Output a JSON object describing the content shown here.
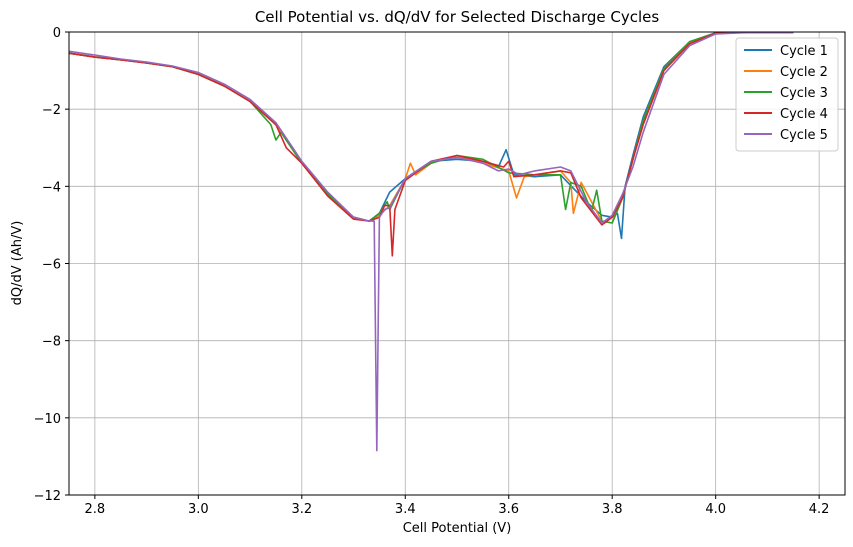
{
  "chart_data": {
    "type": "line",
    "title": "Cell Potential vs. dQ/dV for Selected Discharge Cycles",
    "xlabel": "Cell Potential (V)",
    "ylabel": "dQ/dV (Ah/V)",
    "xlim": [
      2.75,
      4.25
    ],
    "ylim": [
      -12,
      0
    ],
    "xticks": [
      2.8,
      3.0,
      3.2,
      3.4,
      3.6,
      3.8,
      4.0,
      4.2
    ],
    "xtick_labels": [
      "2.8",
      "3.0",
      "3.2",
      "3.4",
      "3.6",
      "3.8",
      "4.0",
      "4.2"
    ],
    "yticks": [
      0,
      -2,
      -4,
      -6,
      -8,
      -10,
      -12
    ],
    "ytick_labels": [
      "0",
      "−2",
      "−4",
      "−6",
      "−8",
      "−10",
      "−12"
    ],
    "grid": true,
    "legend_position": "top-right",
    "series": [
      {
        "name": "Cycle 1",
        "color": "#1f77b4",
        "x": [
          2.75,
          2.8,
          2.85,
          2.9,
          2.95,
          3.0,
          3.05,
          3.1,
          3.15,
          3.18,
          3.2,
          3.25,
          3.3,
          3.33,
          3.35,
          3.37,
          3.4,
          3.45,
          3.5,
          3.55,
          3.58,
          3.595,
          3.61,
          3.65,
          3.7,
          3.75,
          3.78,
          3.8,
          3.81,
          3.818,
          3.825,
          3.84,
          3.86,
          3.9,
          3.95,
          4.0,
          4.05,
          4.1,
          4.15
        ],
        "y": [
          -0.55,
          -0.65,
          -0.72,
          -0.8,
          -0.9,
          -1.1,
          -1.4,
          -1.8,
          -2.4,
          -3.0,
          -3.4,
          -4.2,
          -4.8,
          -4.9,
          -4.7,
          -4.15,
          -3.8,
          -3.35,
          -3.3,
          -3.35,
          -3.5,
          -3.05,
          -3.7,
          -3.75,
          -3.7,
          -4.4,
          -4.75,
          -4.8,
          -4.7,
          -5.35,
          -4.0,
          -3.2,
          -2.2,
          -0.9,
          -0.25,
          -0.02,
          -0.01,
          -0.01,
          -0.01
        ]
      },
      {
        "name": "Cycle 2",
        "color": "#ff7f0e",
        "x": [
          2.75,
          2.8,
          2.85,
          2.9,
          2.95,
          3.0,
          3.05,
          3.1,
          3.15,
          3.18,
          3.2,
          3.25,
          3.3,
          3.33,
          3.35,
          3.37,
          3.4,
          3.41,
          3.42,
          3.45,
          3.5,
          3.55,
          3.6,
          3.615,
          3.63,
          3.65,
          3.7,
          3.72,
          3.725,
          3.74,
          3.78,
          3.8,
          3.82,
          3.84,
          3.86,
          3.9,
          3.95,
          4.0,
          4.05,
          4.1,
          4.15
        ],
        "y": [
          -0.55,
          -0.65,
          -0.72,
          -0.8,
          -0.9,
          -1.1,
          -1.4,
          -1.8,
          -2.4,
          -3.0,
          -3.4,
          -4.2,
          -4.8,
          -4.9,
          -4.75,
          -4.5,
          -3.8,
          -3.4,
          -3.7,
          -3.4,
          -3.2,
          -3.4,
          -3.6,
          -4.3,
          -3.75,
          -3.7,
          -3.6,
          -3.9,
          -4.7,
          -3.9,
          -4.9,
          -4.95,
          -4.3,
          -3.3,
          -2.3,
          -0.95,
          -0.25,
          -0.03,
          -0.01,
          -0.01,
          -0.01
        ]
      },
      {
        "name": "Cycle 3",
        "color": "#2ca02c",
        "x": [
          2.75,
          2.8,
          2.85,
          2.9,
          2.95,
          3.0,
          3.05,
          3.1,
          3.14,
          3.15,
          3.16,
          3.18,
          3.2,
          3.25,
          3.3,
          3.33,
          3.35,
          3.365,
          3.37,
          3.4,
          3.45,
          3.5,
          3.55,
          3.6,
          3.65,
          3.7,
          3.71,
          3.72,
          3.74,
          3.76,
          3.77,
          3.78,
          3.8,
          3.82,
          3.84,
          3.86,
          3.9,
          3.95,
          4.0,
          4.05,
          4.1,
          4.15
        ],
        "y": [
          -0.55,
          -0.65,
          -0.72,
          -0.8,
          -0.9,
          -1.1,
          -1.4,
          -1.8,
          -2.4,
          -2.8,
          -2.6,
          -3.0,
          -3.4,
          -4.2,
          -4.8,
          -4.9,
          -4.7,
          -4.4,
          -4.6,
          -3.8,
          -3.4,
          -3.2,
          -3.3,
          -3.65,
          -3.7,
          -3.7,
          -4.6,
          -3.9,
          -4.0,
          -4.65,
          -4.1,
          -4.9,
          -4.95,
          -4.3,
          -3.3,
          -2.3,
          -0.95,
          -0.25,
          -0.03,
          -0.01,
          -0.01,
          -0.01
        ]
      },
      {
        "name": "Cycle 4",
        "color": "#d62728",
        "x": [
          2.75,
          2.8,
          2.85,
          2.9,
          2.95,
          3.0,
          3.05,
          3.1,
          3.15,
          3.17,
          3.2,
          3.25,
          3.3,
          3.33,
          3.35,
          3.36,
          3.37,
          3.375,
          3.38,
          3.4,
          3.45,
          3.5,
          3.55,
          3.59,
          3.6,
          3.61,
          3.65,
          3.7,
          3.72,
          3.74,
          3.78,
          3.8,
          3.82,
          3.84,
          3.86,
          3.9,
          3.95,
          4.0,
          4.05,
          4.1,
          4.15
        ],
        "y": [
          -0.55,
          -0.65,
          -0.72,
          -0.8,
          -0.9,
          -1.1,
          -1.4,
          -1.8,
          -2.4,
          -3.0,
          -3.4,
          -4.25,
          -4.85,
          -4.9,
          -4.8,
          -4.5,
          -4.5,
          -5.8,
          -4.6,
          -3.85,
          -3.35,
          -3.2,
          -3.35,
          -3.5,
          -3.35,
          -3.75,
          -3.7,
          -3.6,
          -3.65,
          -4.3,
          -5.0,
          -4.8,
          -4.3,
          -3.3,
          -2.4,
          -1.0,
          -0.3,
          -0.03,
          -0.01,
          -0.01,
          -0.01
        ]
      },
      {
        "name": "Cycle 5",
        "color": "#9467bd",
        "x": [
          2.75,
          2.8,
          2.85,
          2.9,
          2.95,
          3.0,
          3.05,
          3.1,
          3.15,
          3.18,
          3.2,
          3.25,
          3.3,
          3.33,
          3.34,
          3.345,
          3.35,
          3.36,
          3.37,
          3.4,
          3.45,
          3.5,
          3.55,
          3.58,
          3.6,
          3.62,
          3.65,
          3.7,
          3.72,
          3.75,
          3.78,
          3.8,
          3.82,
          3.84,
          3.86,
          3.9,
          3.95,
          4.0,
          4.05,
          4.1,
          4.15
        ],
        "y": [
          -0.5,
          -0.6,
          -0.7,
          -0.78,
          -0.88,
          -1.05,
          -1.35,
          -1.75,
          -2.35,
          -2.95,
          -3.35,
          -4.15,
          -4.8,
          -4.9,
          -4.9,
          -10.85,
          -4.8,
          -4.6,
          -4.55,
          -3.8,
          -3.35,
          -3.25,
          -3.4,
          -3.6,
          -3.55,
          -3.7,
          -3.6,
          -3.5,
          -3.6,
          -4.4,
          -4.95,
          -4.75,
          -4.2,
          -3.5,
          -2.6,
          -1.1,
          -0.35,
          -0.05,
          -0.02,
          -0.01,
          -0.01
        ]
      }
    ]
  }
}
